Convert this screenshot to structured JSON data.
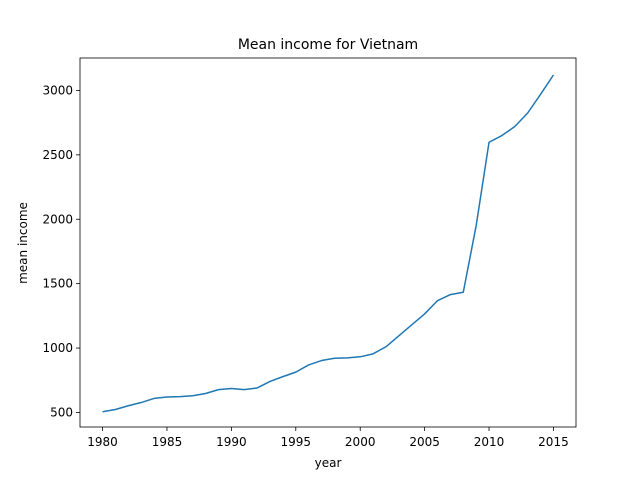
{
  "chart_data": {
    "type": "line",
    "title": "Mean income for Vietnam",
    "xlabel": "year",
    "ylabel": "mean income",
    "xlim": [
      1978.25,
      2016.75
    ],
    "ylim": [
      387,
      3252
    ],
    "xticks": [
      1980,
      1985,
      1990,
      1995,
      2000,
      2005,
      2010,
      2015
    ],
    "yticks": [
      500,
      1000,
      1500,
      2000,
      2500,
      3000
    ],
    "grid": false,
    "series": [
      {
        "color": "#1f77b4",
        "x": [
          1980,
          1981,
          1982,
          1983,
          1984,
          1985,
          1986,
          1987,
          1988,
          1989,
          1990,
          1991,
          1992,
          1993,
          1994,
          1995,
          1996,
          1997,
          1998,
          1999,
          2000,
          2001,
          2002,
          2003,
          2004,
          2005,
          2006,
          2007,
          2008,
          2009,
          2010,
          2011,
          2012,
          2013,
          2014,
          2015
        ],
        "y": [
          505,
          523,
          552,
          577,
          609,
          620,
          623,
          630,
          647,
          677,
          686,
          677,
          690,
          741,
          778,
          813,
          869,
          903,
          921,
          924,
          932,
          955,
          1010,
          1095,
          1180,
          1265,
          1368,
          1415,
          1433,
          1950,
          2598,
          2650,
          2720,
          2825,
          2970,
          3120
        ]
      }
    ]
  }
}
